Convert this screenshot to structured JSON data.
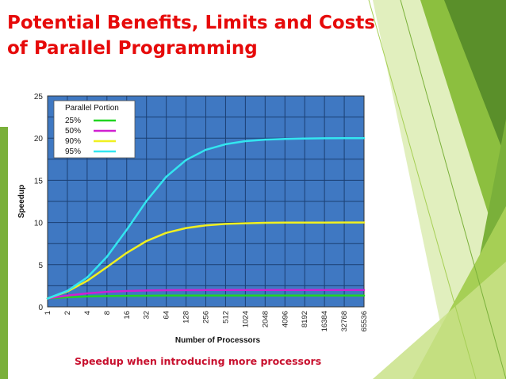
{
  "slide": {
    "title_line1": "Potential Benefits, Limits and Costs",
    "title_line2": "of Parallel Programming",
    "caption": "Speedup when introducing more processors"
  },
  "colors": {
    "title": "#e60a0a",
    "caption": "#c8102e",
    "plot_background": "#3f78c2",
    "decoration_greens": [
      "#5a8f2a",
      "#7ab03a",
      "#a6cf55",
      "#c9e288"
    ]
  },
  "chart_data": {
    "type": "line",
    "title": "",
    "xlabel": "Number of Processors",
    "ylabel": "Speedup",
    "x": [
      "1",
      "2",
      "4",
      "8",
      "16",
      "32",
      "64",
      "128",
      "256",
      "512",
      "1024",
      "2048",
      "4096",
      "8192",
      "16384",
      "32768",
      "65536"
    ],
    "ylim": [
      0,
      25
    ],
    "yticks": [
      "0",
      "5",
      "10",
      "15",
      "20",
      "25"
    ],
    "grid": true,
    "legend_title": "Parallel Portion",
    "legend_position": "top-left",
    "series": [
      {
        "name": "25%",
        "color": "#22d422",
        "values": [
          1.0,
          1.14,
          1.23,
          1.28,
          1.31,
          1.32,
          1.33,
          1.33,
          1.33,
          1.33,
          1.33,
          1.33,
          1.33,
          1.33,
          1.33,
          1.33,
          1.33
        ]
      },
      {
        "name": "50%",
        "color": "#d020d0",
        "values": [
          1.0,
          1.33,
          1.6,
          1.78,
          1.88,
          1.94,
          1.97,
          1.98,
          1.99,
          2.0,
          2.0,
          2.0,
          2.0,
          2.0,
          2.0,
          2.0,
          2.0
        ]
      },
      {
        "name": "90%",
        "color": "#f0f020",
        "values": [
          1.0,
          1.82,
          3.08,
          4.71,
          6.4,
          7.8,
          8.77,
          9.34,
          9.66,
          9.83,
          9.91,
          9.96,
          9.98,
          9.99,
          9.99,
          10.0,
          10.0
        ]
      },
      {
        "name": "95%",
        "color": "#33e6f0",
        "values": [
          1.0,
          1.9,
          3.48,
          5.93,
          9.14,
          12.55,
          15.42,
          17.41,
          18.62,
          19.28,
          19.64,
          19.82,
          19.91,
          19.95,
          19.98,
          19.99,
          19.99
        ]
      }
    ]
  }
}
